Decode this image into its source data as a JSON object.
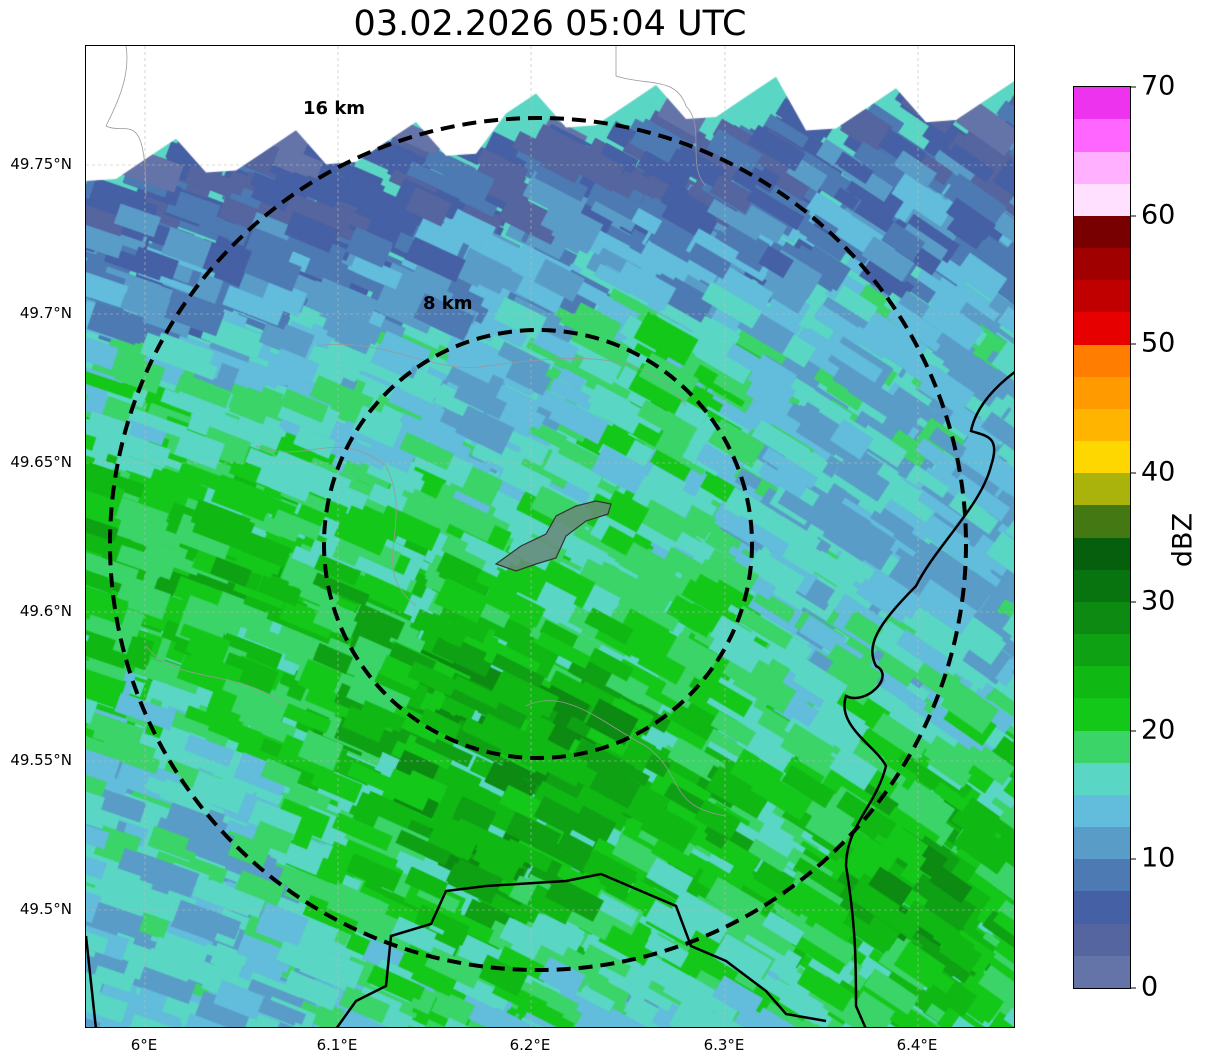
{
  "title": "03.02.2026 05:04 UTC",
  "lat_ticks": [
    "49.75°N",
    "49.7°N",
    "49.65°N",
    "49.6°N",
    "49.55°N",
    "49.5°N"
  ],
  "lon_ticks": [
    "6°E",
    "6.1°E",
    "6.2°E",
    "6.3°E",
    "6.4°E"
  ],
  "range_rings": [
    "16 km",
    "8 km"
  ],
  "colorbar": {
    "label": "dBZ",
    "ticks": [
      "0",
      "10",
      "20",
      "30",
      "40",
      "50",
      "60",
      "70"
    ],
    "min": 0,
    "max": 70,
    "step": 2.5,
    "colors": [
      "#6574a8",
      "#55659f",
      "#4560a4",
      "#4d7ab3",
      "#5a9cc8",
      "#62bcdb",
      "#5ad6c4",
      "#3bd468",
      "#14c81a",
      "#10b814",
      "#0fa114",
      "#0c8a12",
      "#087410",
      "#065f0c",
      "#447812",
      "#aab20c",
      "#ffd700",
      "#ffb400",
      "#ff9a00",
      "#ff7d00",
      "#e60000",
      "#c00000",
      "#a00000",
      "#780000",
      "#ffe0ff",
      "#ffb0ff",
      "#ff66ff",
      "#ee33ee"
    ]
  }
}
